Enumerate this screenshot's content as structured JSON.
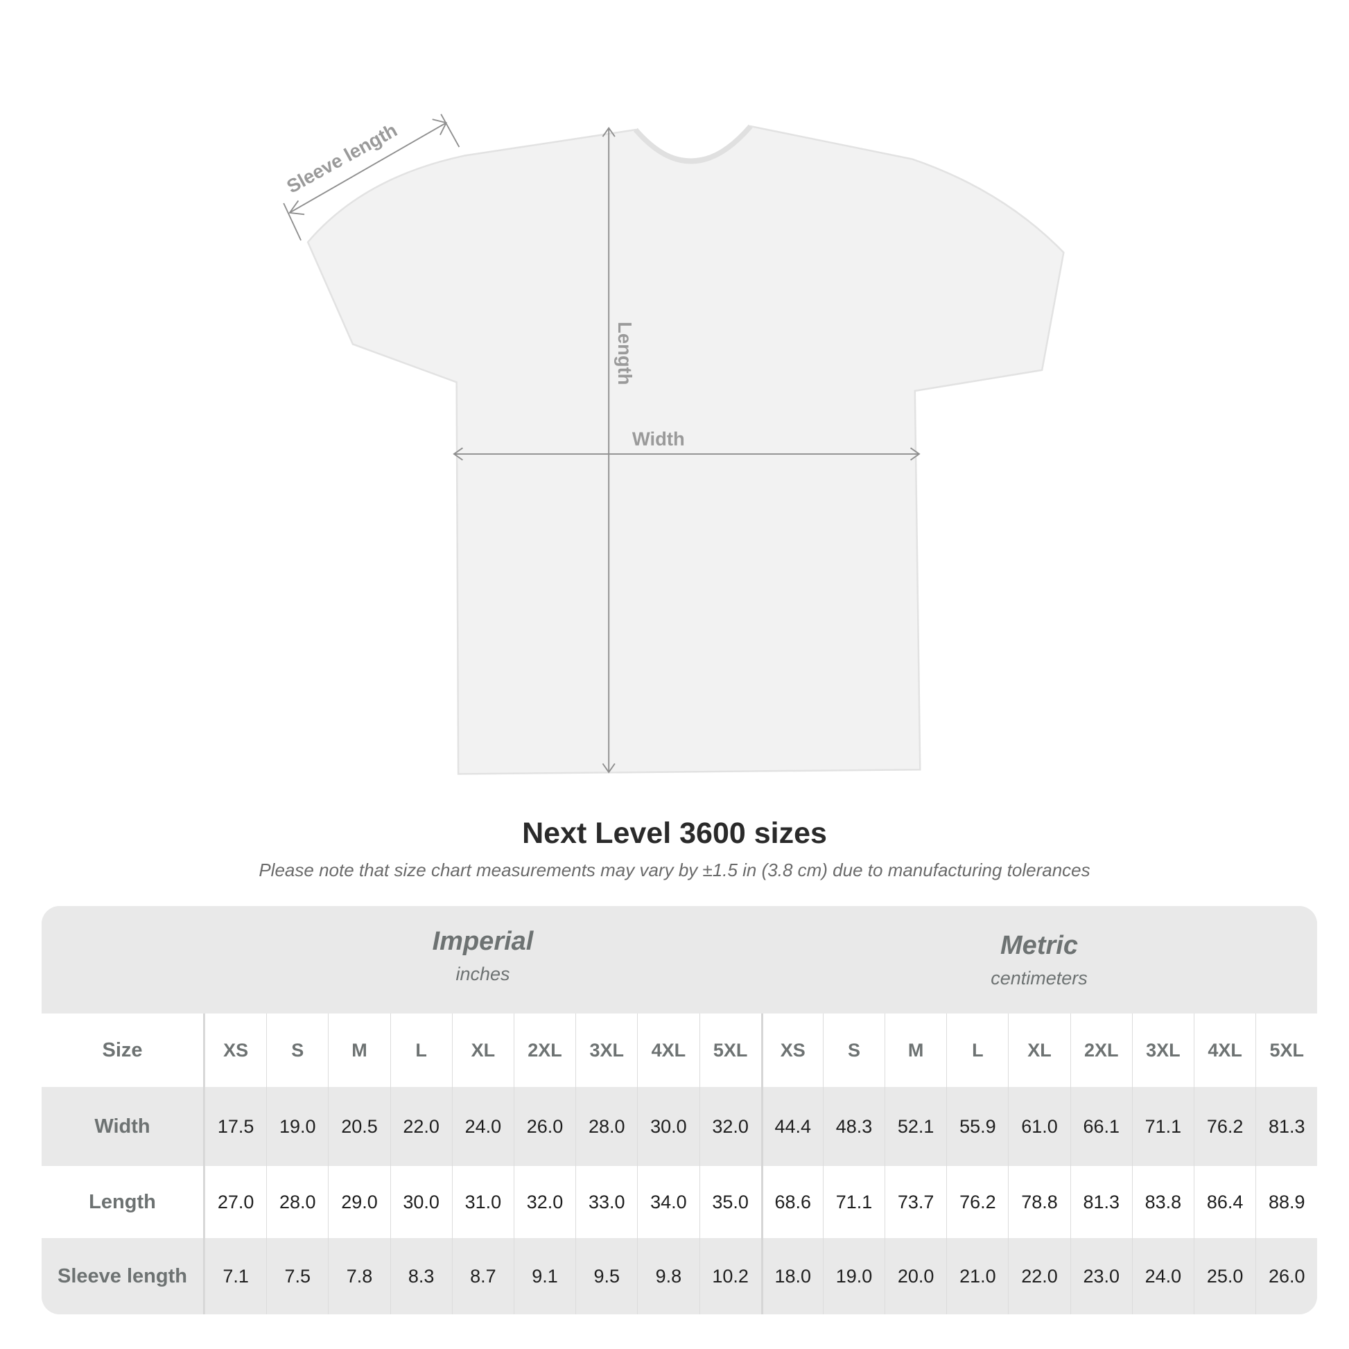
{
  "diagram": {
    "labels": {
      "sleeve": "Sleeve length",
      "length": "Length",
      "width": "Width"
    }
  },
  "title": "Next Level 3600 sizes",
  "note": "Please note that size chart measurements may vary by ±1.5 in (3.8 cm) due to manufacturing tolerances",
  "table": {
    "imperial": {
      "name": "Imperial",
      "unit": "inches"
    },
    "metric": {
      "name": "Metric",
      "unit": "centimeters"
    },
    "size_label": "Size",
    "sizes": [
      "XS",
      "S",
      "M",
      "L",
      "XL",
      "2XL",
      "3XL",
      "4XL",
      "5XL"
    ],
    "rows": [
      {
        "label": "Width",
        "imperial": [
          "17.5",
          "19.0",
          "20.5",
          "22.0",
          "24.0",
          "26.0",
          "28.0",
          "30.0",
          "32.0"
        ],
        "metric": [
          "44.4",
          "48.3",
          "52.1",
          "55.9",
          "61.0",
          "66.1",
          "71.1",
          "76.2",
          "81.3"
        ]
      },
      {
        "label": "Length",
        "imperial": [
          "27.0",
          "28.0",
          "29.0",
          "30.0",
          "31.0",
          "32.0",
          "33.0",
          "34.0",
          "35.0"
        ],
        "metric": [
          "68.6",
          "71.1",
          "73.7",
          "76.2",
          "78.8",
          "81.3",
          "83.8",
          "86.4",
          "88.9"
        ]
      },
      {
        "label": "Sleeve length",
        "imperial": [
          "7.1",
          "7.5",
          "7.8",
          "8.3",
          "8.7",
          "9.1",
          "9.5",
          "9.8",
          "10.2"
        ],
        "metric": [
          "18.0",
          "19.0",
          "20.0",
          "21.0",
          "22.0",
          "23.0",
          "24.0",
          "25.0",
          "26.0"
        ]
      }
    ]
  }
}
